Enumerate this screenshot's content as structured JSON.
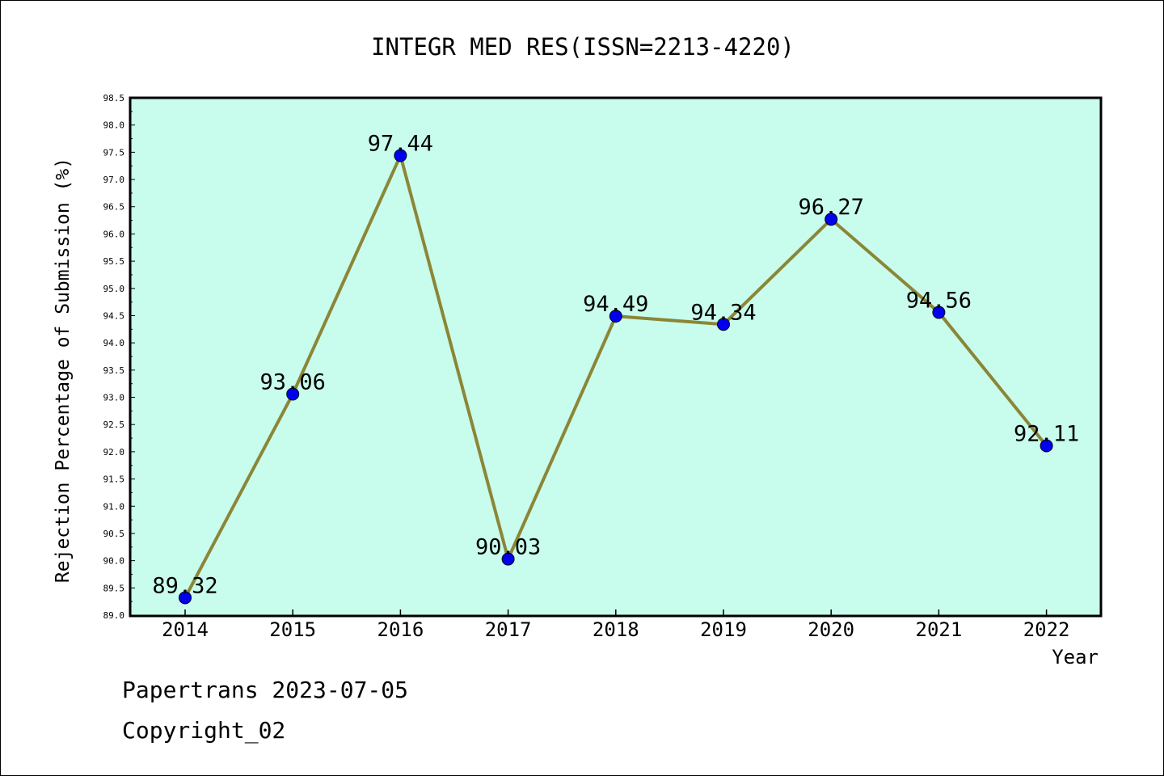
{
  "chart_data": {
    "type": "line",
    "title": "INTEGR MED RES(ISSN=2213-4220)",
    "xlabel": "Year",
    "ylabel": "Rejection Percentage of Submission (%)",
    "categories": [
      "2014",
      "2015",
      "2016",
      "2017",
      "2018",
      "2019",
      "2020",
      "2021",
      "2022"
    ],
    "series": [
      {
        "values": [
          89.32,
          93.06,
          97.44,
          90.03,
          94.49,
          94.34,
          96.27,
          94.56,
          92.11
        ],
        "data_labels": [
          "89.32",
          "93.06",
          "97.44",
          "90.03",
          "94.49",
          "94.34",
          "96.27",
          "94.56",
          "92.11"
        ]
      }
    ],
    "ylim": [
      89.0,
      98.5
    ],
    "yticks": [
      "89.0",
      "89.5",
      "90.0",
      "90.5",
      "91.0",
      "91.5",
      "92.0",
      "92.5",
      "93.0",
      "93.5",
      "94.0",
      "94.5",
      "95.0",
      "95.5",
      "96.0",
      "96.5",
      "97.0",
      "97.5",
      "98.0",
      "98.5"
    ],
    "grid": false,
    "legend": "none",
    "colors": {
      "plot_background": "#c8fcec",
      "line": "#8b8637",
      "marker": "#0000ee"
    }
  },
  "footer": {
    "line1": "Papertrans 2023-07-05",
    "line2": "Copyright_02"
  }
}
